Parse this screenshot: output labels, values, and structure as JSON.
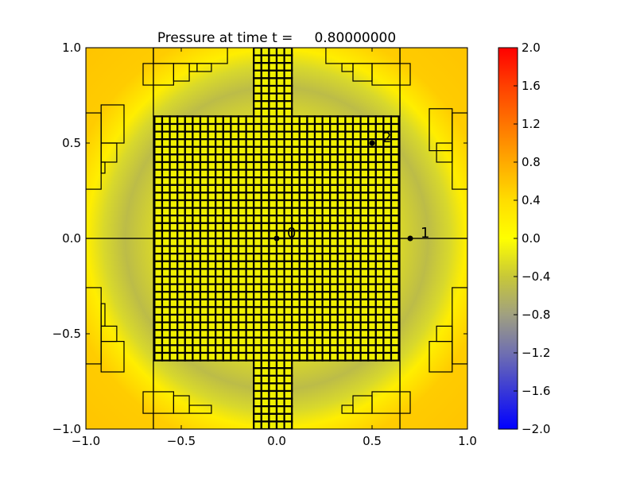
{
  "chart_data": {
    "type": "heatmap",
    "title": "Pressure at time t =     0.80000000",
    "xlabel": "",
    "ylabel": "",
    "xlim": [
      -1.0,
      1.0
    ],
    "ylim": [
      -1.0,
      1.0
    ],
    "xticks": [
      "−1.0",
      "−0.5",
      "0.0",
      "0.5",
      "1.0"
    ],
    "xtick_values": [
      -1.0,
      -0.5,
      0.0,
      0.5,
      1.0
    ],
    "yticks": [
      "−1.0",
      "−0.5",
      "0.0",
      "0.5",
      "1.0"
    ],
    "ytick_values": [
      -1.0,
      -0.5,
      0.0,
      0.5,
      1.0
    ],
    "colorbar": {
      "range": [
        -2.0,
        2.0
      ],
      "ticks": [
        "−2.0",
        "−1.6",
        "−1.2",
        "−0.8",
        "−0.4",
        "0.0",
        "0.4",
        "0.8",
        "1.2",
        "1.6",
        "2.0"
      ],
      "tick_values": [
        -2.0,
        -1.6,
        -1.2,
        -0.8,
        -0.4,
        0.0,
        0.4,
        0.8,
        1.2,
        1.6,
        2.0
      ],
      "colors": [
        {
          "value": -2.0,
          "color": "#0000ff"
        },
        {
          "value": -1.2,
          "color": "#7070b0"
        },
        {
          "value": -0.8,
          "color": "#a0a080"
        },
        {
          "value": -0.4,
          "color": "#c8c838"
        },
        {
          "value": 0.0,
          "color": "#ffff00"
        },
        {
          "value": 0.4,
          "color": "#ffdd00"
        },
        {
          "value": 0.8,
          "color": "#ffaa00"
        },
        {
          "value": 1.6,
          "color": "#ff4000"
        },
        {
          "value": 2.0,
          "color": "#ff0000"
        }
      ]
    },
    "field_description_values": {
      "center": -0.1,
      "ring_radius": 0.82,
      "ring": -0.6,
      "corner": 0.5
    },
    "refined_cell_size": 0.04,
    "refined_patches": [
      {
        "x": [
          -0.64,
          0.64
        ],
        "y": [
          -0.64,
          0.64
        ]
      },
      {
        "x": [
          -0.12,
          0.08
        ],
        "y": [
          0.64,
          1.0
        ]
      },
      {
        "x": [
          -0.12,
          0.08
        ],
        "y": [
          -1.0,
          -0.64
        ]
      }
    ],
    "coarse_boxes": [
      {
        "x": [
          -1.0,
          -0.646
        ],
        "y": [
          0.0,
          1.0
        ]
      },
      {
        "x": [
          -1.0,
          -0.646
        ],
        "y": [
          -1.0,
          0.0
        ]
      },
      {
        "x": [
          0.646,
          1.0
        ],
        "y": [
          0.0,
          1.0
        ]
      },
      {
        "x": [
          0.646,
          1.0
        ],
        "y": [
          -1.0,
          0.0
        ]
      },
      {
        "x": [
          -0.646,
          -0.12
        ],
        "y": [
          0.64,
          1.0
        ]
      },
      {
        "x": [
          0.08,
          0.646
        ],
        "y": [
          0.64,
          1.0
        ]
      },
      {
        "x": [
          -0.646,
          -0.12
        ],
        "y": [
          -1.0,
          -0.64
        ]
      },
      {
        "x": [
          0.08,
          0.646
        ],
        "y": [
          -1.0,
          -0.64
        ]
      },
      {
        "x": [
          -1.0,
          -0.92
        ],
        "y": [
          0.258,
          0.658
        ]
      },
      {
        "x": [
          -0.92,
          -0.8
        ],
        "y": [
          0.5,
          0.7
        ]
      },
      {
        "x": [
          -0.92,
          -0.838
        ],
        "y": [
          0.4,
          0.5
        ]
      },
      {
        "x": [
          -0.92,
          -0.9
        ],
        "y": [
          0.342,
          0.4
        ]
      },
      {
        "x": [
          -0.646,
          -0.258
        ],
        "y": [
          0.917,
          1.0
        ]
      },
      {
        "x": [
          -0.7,
          -0.54
        ],
        "y": [
          0.804,
          0.917
        ]
      },
      {
        "x": [
          -0.54,
          -0.458
        ],
        "y": [
          0.825,
          0.917
        ]
      },
      {
        "x": [
          -0.458,
          -0.417
        ],
        "y": [
          0.875,
          0.917
        ]
      },
      {
        "x": [
          -0.417,
          -0.342
        ],
        "y": [
          0.875,
          0.917
        ]
      },
      {
        "x": [
          0.92,
          1.0
        ],
        "y": [
          0.258,
          0.658
        ]
      },
      {
        "x": [
          0.8,
          0.92
        ],
        "y": [
          0.46,
          0.68
        ]
      },
      {
        "x": [
          0.838,
          0.92
        ],
        "y": [
          0.4,
          0.5
        ]
      },
      {
        "x": [
          0.258,
          0.646
        ],
        "y": [
          0.917,
          1.0
        ]
      },
      {
        "x": [
          0.5,
          0.7
        ],
        "y": [
          0.804,
          0.917
        ]
      },
      {
        "x": [
          0.4,
          0.5
        ],
        "y": [
          0.825,
          0.917
        ]
      },
      {
        "x": [
          0.342,
          0.4
        ],
        "y": [
          0.875,
          0.917
        ]
      },
      {
        "x": [
          -1.0,
          -0.92
        ],
        "y": [
          -0.658,
          -0.258
        ]
      },
      {
        "x": [
          -0.92,
          -0.8
        ],
        "y": [
          -0.7,
          -0.54
        ]
      },
      {
        "x": [
          -0.92,
          -0.838
        ],
        "y": [
          -0.54,
          -0.46
        ]
      },
      {
        "x": [
          -0.92,
          -0.9
        ],
        "y": [
          -0.46,
          -0.342
        ]
      },
      {
        "x": [
          -0.7,
          -0.54
        ],
        "y": [
          -0.917,
          -0.804
        ]
      },
      {
        "x": [
          -0.54,
          -0.458
        ],
        "y": [
          -0.917,
          -0.825
        ]
      },
      {
        "x": [
          -0.458,
          -0.342
        ],
        "y": [
          -0.917,
          -0.875
        ]
      },
      {
        "x": [
          0.92,
          1.0
        ],
        "y": [
          -0.658,
          -0.258
        ]
      },
      {
        "x": [
          0.8,
          0.92
        ],
        "y": [
          -0.7,
          -0.54
        ]
      },
      {
        "x": [
          0.838,
          0.92
        ],
        "y": [
          -0.54,
          -0.46
        ]
      },
      {
        "x": [
          0.5,
          0.7
        ],
        "y": [
          -0.917,
          -0.804
        ]
      },
      {
        "x": [
          0.4,
          0.5
        ],
        "y": [
          -0.917,
          -0.825
        ]
      },
      {
        "x": [
          0.342,
          0.4
        ],
        "y": [
          -0.917,
          -0.875
        ]
      }
    ],
    "points": [
      {
        "label": "0",
        "x": 0.0,
        "y": 0.0
      },
      {
        "label": "1",
        "x": 0.7,
        "y": 0.0
      },
      {
        "label": "2",
        "x": 0.5,
        "y": 0.5
      }
    ]
  }
}
